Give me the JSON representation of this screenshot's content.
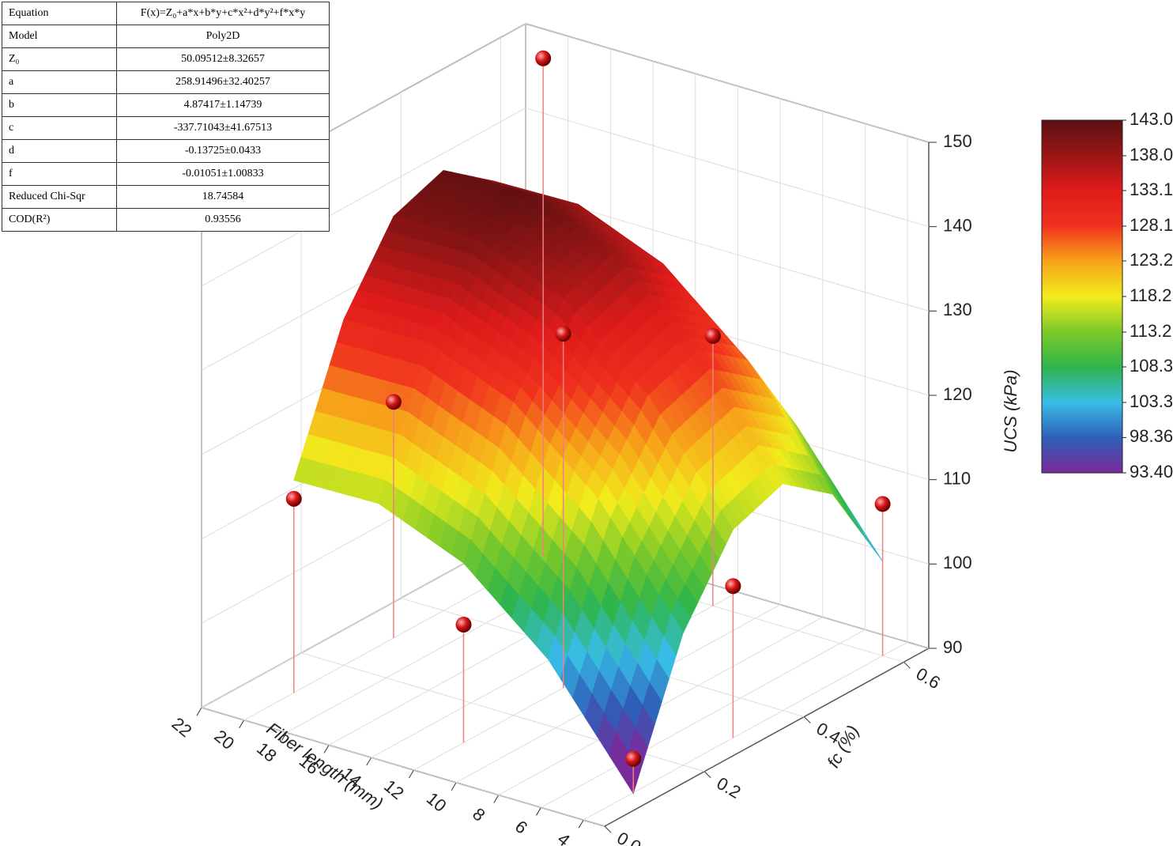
{
  "table": {
    "rows": [
      [
        "Equation",
        "F(x)=Z₀+a*x+b*y+c*x²+d*y²+f*x*y"
      ],
      [
        "Model",
        "Poly2D"
      ],
      [
        "Z₀",
        "50.09512±8.32657"
      ],
      [
        "a",
        "258.91496±32.40257"
      ],
      [
        "b",
        "4.87417±1.14739"
      ],
      [
        "c",
        "-337.71043±41.67513"
      ],
      [
        "d",
        "-0.13725±0.0433"
      ],
      [
        "f",
        "-0.01051±1.00833"
      ],
      [
        "Reduced Chi-Sqr",
        "18.74584"
      ],
      [
        "COD(R²)",
        "0.93556"
      ]
    ]
  },
  "chart_data": {
    "type": "surface3d",
    "length_axis": {
      "label": "Fiber length (mm)",
      "lim": [
        3,
        22
      ],
      "ticks": [
        4,
        6,
        8,
        10,
        12,
        14,
        16,
        18,
        20,
        22
      ]
    },
    "fc_axis": {
      "label": "fc (%)",
      "lim": [
        0,
        0.65
      ],
      "ticks": [
        {
          "value": 0,
          "label": "0.0"
        },
        0.2,
        0.4,
        0.6
      ]
    },
    "z_axis": {
      "label": "UCS (kPa)",
      "lim": [
        90,
        150
      ],
      "ticks": [
        90,
        100,
        110,
        120,
        130,
        140,
        150
      ]
    },
    "grid": true,
    "surface": {
      "fc": [
        0.1,
        0.2,
        0.3,
        0.4,
        0.5,
        0.6
      ],
      "length": [
        4,
        8,
        12,
        16,
        20
      ],
      "ucs": [
        [
          89.9,
          105.7,
          114.7,
          116.9,
          112.4,
          101.2
        ],
        [
          102.8,
          118.6,
          127.6,
          129.8,
          125.3,
          114.1
        ],
        [
          111.3,
          127.1,
          136.1,
          138.3,
          133.8,
          122.6
        ],
        [
          115.4,
          131.2,
          140.2,
          142.4,
          137.9,
          126.7
        ],
        [
          115.2,
          131.0,
          140.0,
          142.2,
          137.7,
          126.5
        ]
      ]
    },
    "points": {
      "fc": [
        0.1,
        0.1,
        0.1,
        0.3,
        0.3,
        0.3,
        0.6,
        0.6,
        0.6
      ],
      "length": [
        4,
        12,
        20,
        4,
        12,
        20,
        4,
        12,
        20
      ],
      "ucs": [
        94,
        104,
        113,
        108,
        132,
        118,
        108,
        122,
        149
      ],
      "color": "#d81818"
    },
    "colorbar": {
      "ticks": [
        {
          "value": 143,
          "label": "143.0"
        },
        {
          "value": 138,
          "label": "138.0"
        },
        133.1,
        128.1,
        123.2,
        118.2,
        113.2,
        108.3,
        103.3,
        98.36,
        {
          "value": 93.4,
          "label": "93.40"
        }
      ],
      "colors": [
        "#5a0f12",
        "#9b1616",
        "#e01b1b",
        "#f0321e",
        "#f7a21a",
        "#f2ec1c",
        "#7cc92a",
        "#2fb54a",
        "#38bde6",
        "#2e5fb8",
        "#7a2a9a"
      ]
    }
  }
}
